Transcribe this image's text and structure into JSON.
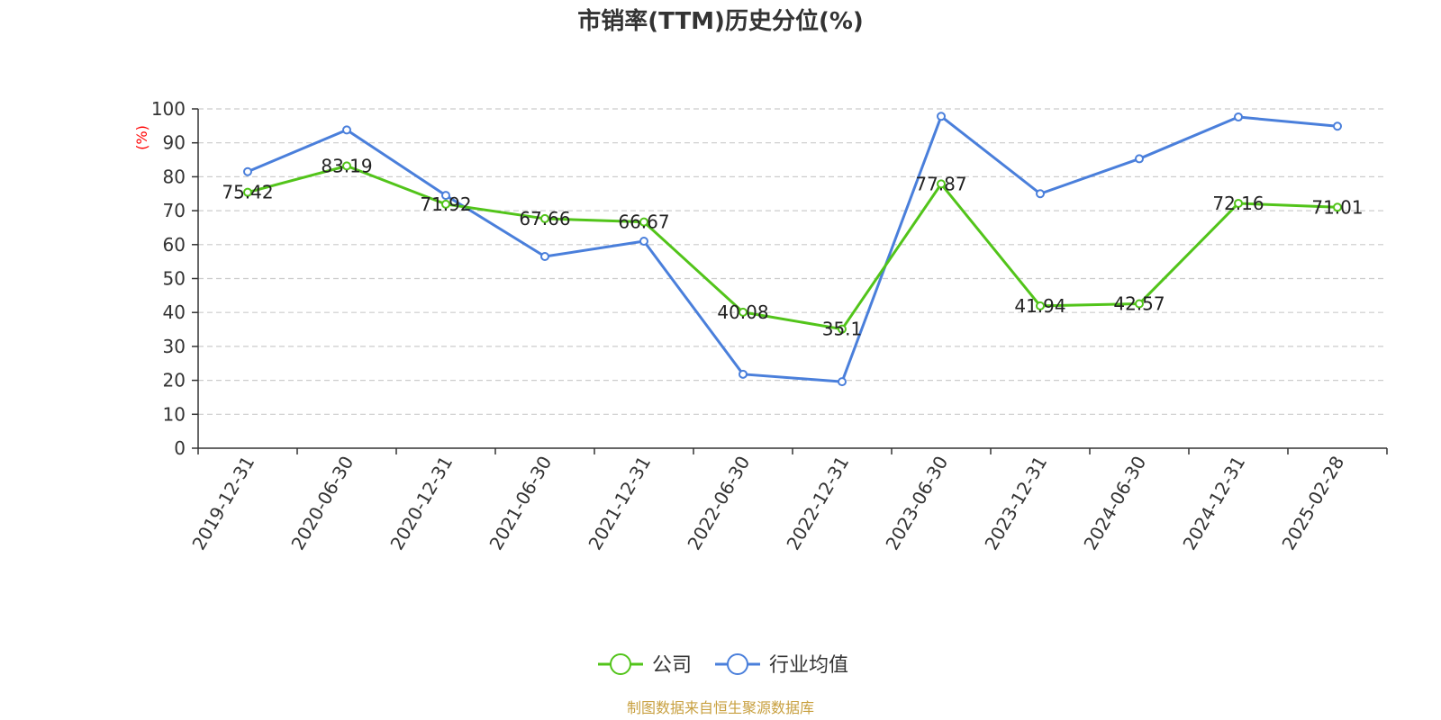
{
  "chart_data": {
    "type": "line",
    "title": "市销率(TTM)历史分位(%)",
    "ylabel": "(%)",
    "xlabel": "",
    "ylim": [
      0,
      100
    ],
    "yticks": [
      0,
      10,
      20,
      30,
      40,
      50,
      60,
      70,
      80,
      90,
      100
    ],
    "categories": [
      "2019-12-31",
      "2020-06-30",
      "2020-12-31",
      "2021-06-30",
      "2021-12-31",
      "2022-06-30",
      "2022-12-31",
      "2023-06-30",
      "2023-12-31",
      "2024-06-30",
      "2024-12-31",
      "2025-02-28"
    ],
    "series": [
      {
        "name": "公司",
        "color": "#52c41a",
        "values": [
          75.42,
          83.19,
          71.92,
          67.66,
          66.67,
          40.08,
          35.1,
          77.87,
          41.94,
          42.57,
          72.16,
          71.01
        ],
        "labels": [
          "75.42",
          "83.19",
          "71.92",
          "67.66",
          "66.67",
          "40.08",
          "35.1",
          "77.87",
          "41.94",
          "42.57",
          "72.16",
          "71.01"
        ]
      },
      {
        "name": "行业均值",
        "color": "#4a7fdb",
        "values": [
          81.5,
          93.8,
          74.5,
          56.5,
          61.0,
          21.8,
          19.6,
          97.8,
          75.0,
          85.3,
          97.6,
          94.9
        ]
      }
    ],
    "grid": true,
    "legend_position": "bottom"
  },
  "source": "制图数据来自恒生聚源数据库"
}
